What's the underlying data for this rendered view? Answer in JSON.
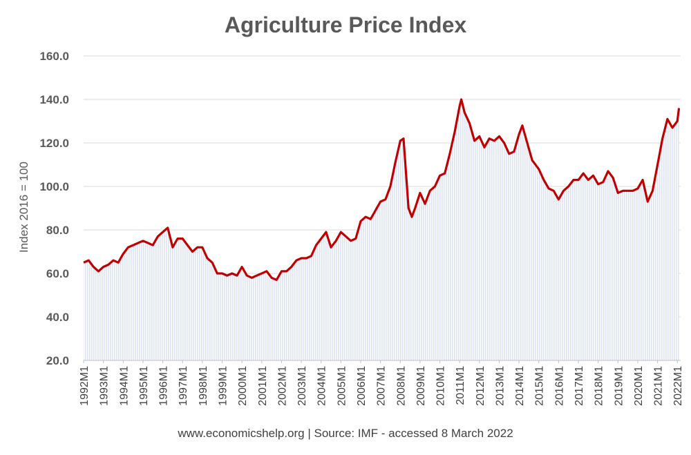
{
  "chart_data": {
    "type": "area",
    "title": "Agriculture Price Index",
    "xlabel": "",
    "ylabel": "Index 2016 = 100",
    "ylim": [
      20,
      160
    ],
    "yticks": [
      "20.0",
      "40.0",
      "60.0",
      "80.0",
      "100.0",
      "120.0",
      "140.0",
      "160.0"
    ],
    "xticks": [
      "1992M1",
      "1993M1",
      "1994M1",
      "1995M1",
      "1996M1",
      "1997M1",
      "1998M1",
      "1999M1",
      "2000M1",
      "2001M1",
      "2002M1",
      "2003M1",
      "2004M1",
      "2005M1",
      "2006M1",
      "2007M1",
      "2008M1",
      "2009M1",
      "2010M1",
      "2011M1",
      "2012M1",
      "2013M1",
      "2014M1",
      "2015M1",
      "2016M1",
      "2017M1",
      "2018M1",
      "2019M1",
      "2020M1",
      "2021M1",
      "2022M1"
    ],
    "grid": "horizontal",
    "line_color": "#c00000",
    "fill_color": "#dde3f3",
    "series": [
      {
        "x": [
          "1992-01",
          "1992-04",
          "1992-07",
          "1992-10",
          "1993-01",
          "1993-04",
          "1993-07",
          "1993-10",
          "1994-01",
          "1994-04",
          "1994-07",
          "1994-10",
          "1995-01",
          "1995-04",
          "1995-07",
          "1995-10",
          "1996-01",
          "1996-04",
          "1996-07",
          "1996-10",
          "1997-01",
          "1997-04",
          "1997-07",
          "1997-10",
          "1998-01",
          "1998-04",
          "1998-07",
          "1998-10",
          "1999-01",
          "1999-04",
          "1999-07",
          "1999-10",
          "2000-01",
          "2000-04",
          "2000-07",
          "2000-10",
          "2001-01",
          "2001-04",
          "2001-07",
          "2001-10",
          "2002-01",
          "2002-04",
          "2002-07",
          "2002-10",
          "2003-01",
          "2003-04",
          "2003-07",
          "2003-10",
          "2004-01",
          "2004-04",
          "2004-07",
          "2004-10",
          "2005-01",
          "2005-04",
          "2005-07",
          "2005-10",
          "2006-01",
          "2006-04",
          "2006-07",
          "2006-10",
          "2007-01",
          "2007-04",
          "2007-07",
          "2007-10",
          "2008-01",
          "2008-03",
          "2008-06",
          "2008-08",
          "2008-10",
          "2009-01",
          "2009-04",
          "2009-07",
          "2009-10",
          "2010-01",
          "2010-04",
          "2010-07",
          "2010-10",
          "2011-01",
          "2011-02",
          "2011-04",
          "2011-07",
          "2011-10",
          "2012-01",
          "2012-04",
          "2012-07",
          "2012-10",
          "2013-01",
          "2013-04",
          "2013-07",
          "2013-10",
          "2014-01",
          "2014-03",
          "2014-06",
          "2014-09",
          "2015-01",
          "2015-04",
          "2015-07",
          "2015-10",
          "2016-01",
          "2016-04",
          "2016-07",
          "2016-10",
          "2017-01",
          "2017-04",
          "2017-07",
          "2017-10",
          "2018-01",
          "2018-04",
          "2018-07",
          "2018-10",
          "2019-01",
          "2019-04",
          "2019-07",
          "2019-10",
          "2020-01",
          "2020-04",
          "2020-07",
          "2020-10",
          "2021-01",
          "2021-04",
          "2021-07",
          "2021-10",
          "2022-01",
          "2022-02"
        ],
        "values": [
          65,
          66,
          63,
          61,
          63,
          64,
          66,
          65,
          69,
          72,
          73,
          74,
          75,
          74,
          73,
          77,
          79,
          81,
          72,
          76,
          76,
          73,
          70,
          72,
          72,
          67,
          65,
          60,
          60,
          59,
          60,
          59,
          63,
          59,
          58,
          59,
          60,
          61,
          58,
          57,
          61,
          61,
          63,
          66,
          67,
          67,
          68,
          73,
          76,
          79,
          72,
          75,
          79,
          77,
          75,
          76,
          84,
          86,
          85,
          89,
          93,
          94,
          100,
          111,
          121,
          122,
          90,
          86,
          90,
          97,
          92,
          98,
          100,
          105,
          106,
          115,
          125,
          137,
          140,
          134,
          129,
          121,
          123,
          118,
          122,
          121,
          123,
          120,
          115,
          116,
          124,
          128,
          120,
          112,
          108,
          103,
          99,
          98,
          94,
          98,
          100,
          103,
          103,
          106,
          103,
          105,
          101,
          102,
          107,
          104,
          97,
          98,
          98,
          98,
          99,
          103,
          93,
          98,
          110,
          122,
          131,
          127,
          130,
          136
        ]
      }
    ],
    "annotation": "www.economicshelp.org  | Source:  IMF - accessed  8 March 2022"
  }
}
